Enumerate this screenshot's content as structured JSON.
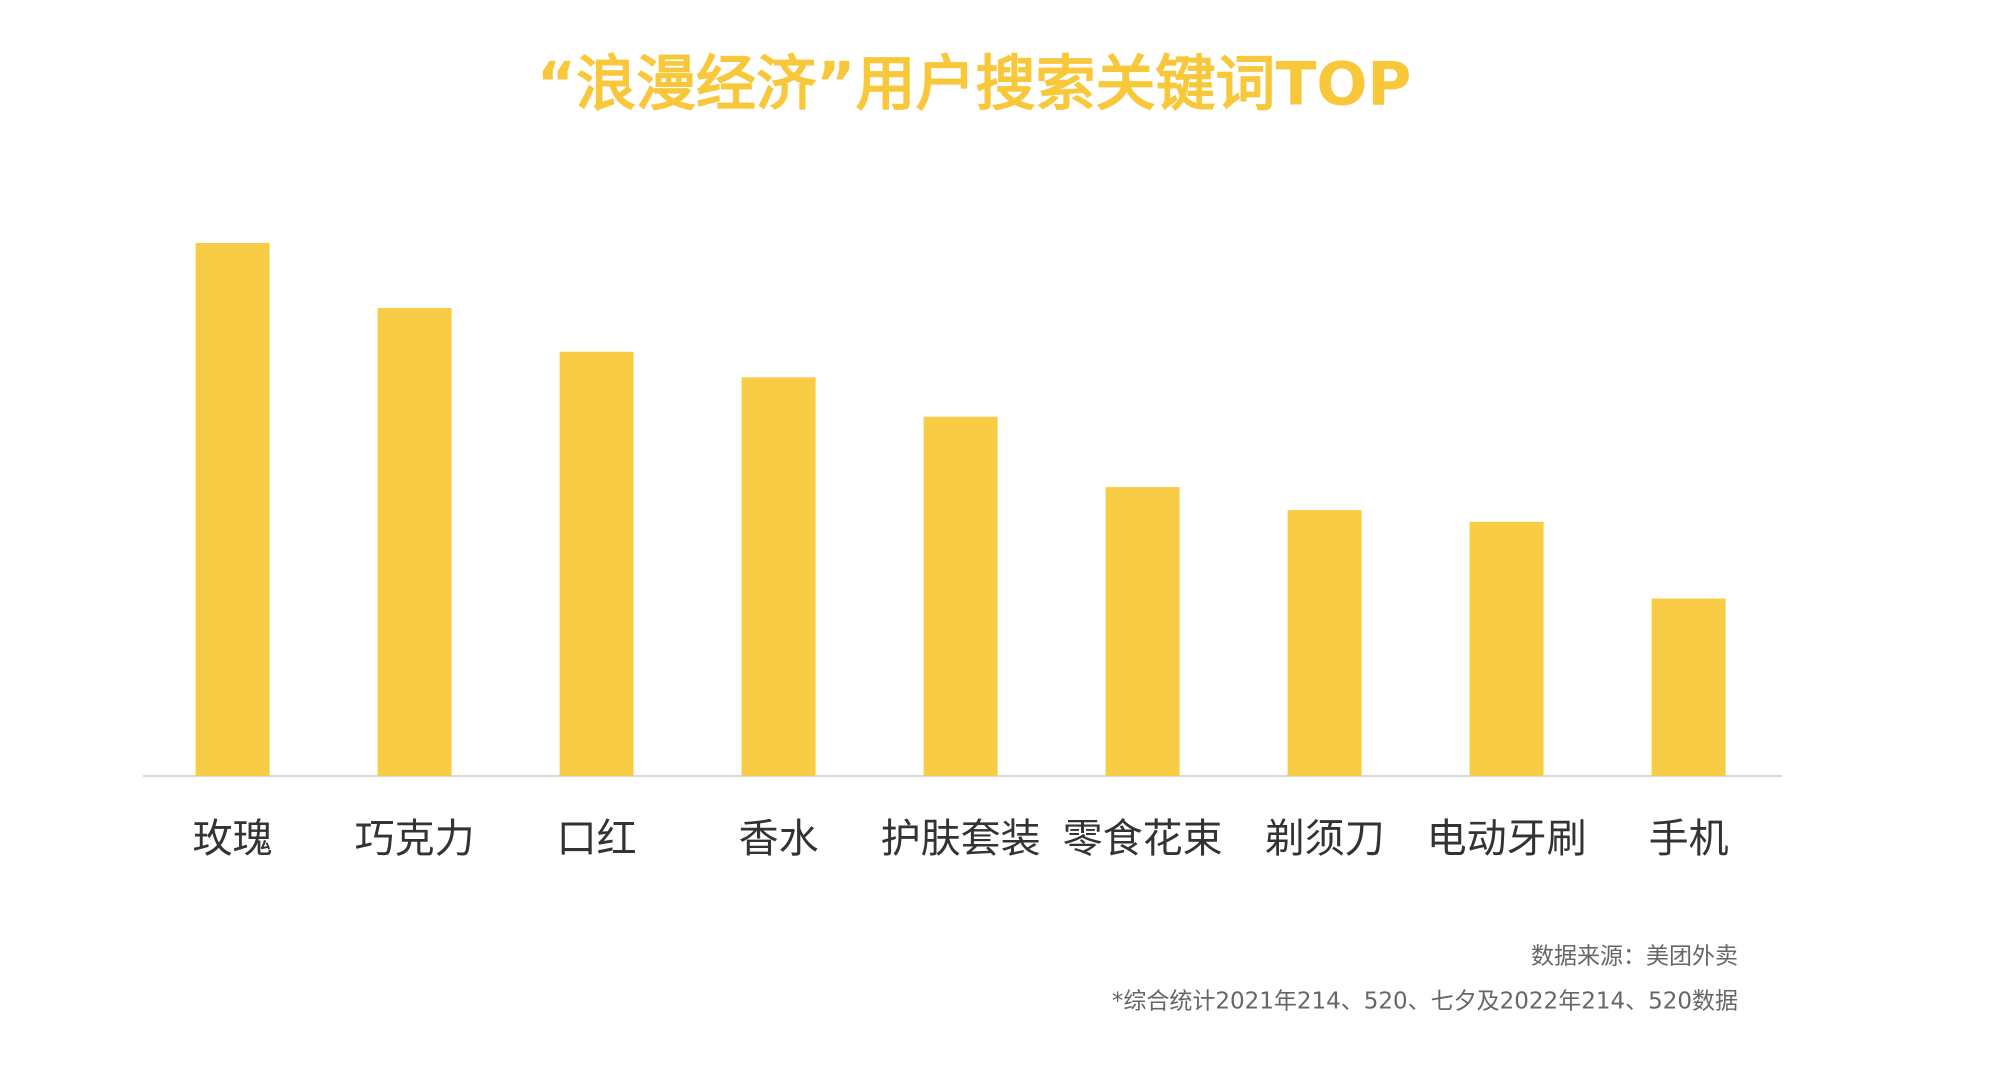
{
  "chart_data": {
    "type": "bar",
    "title": "“浪漫经济”用户搜索关键词TOP",
    "categories": [
      "玫瑰",
      "巧克力",
      "口红",
      "香水",
      "护肤套装",
      "零食花束",
      "剃须刀",
      "电动牙刷",
      "手机"
    ],
    "values": [
      100,
      87.8,
      79.6,
      74.8,
      67.4,
      54.2,
      49.9,
      47.7,
      33.3
    ],
    "color": "#f9cc46",
    "source": "数据来源：美团外卖",
    "note": "*综合统计2021年214、520、七夕及2022年214、520数据"
  }
}
